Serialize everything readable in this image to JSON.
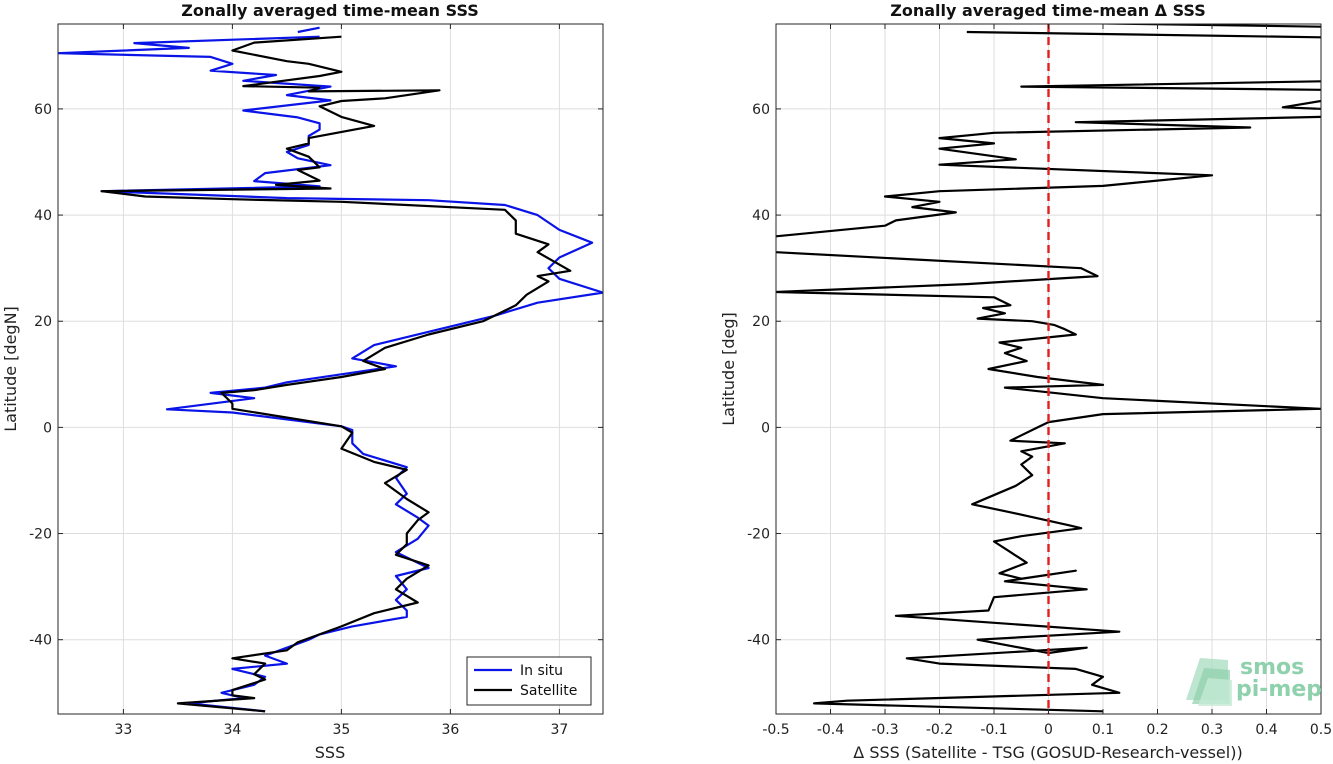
{
  "chart_data": [
    {
      "type": "line",
      "title": "Zonally averaged time-mean SSS",
      "xlabel": "SSS",
      "ylabel": "Latitude [degN]",
      "xlim": [
        32.4,
        37.4
      ],
      "ylim": [
        -54,
        76
      ],
      "xticks": [
        33,
        34,
        35,
        36,
        37
      ],
      "yticks": [
        -40,
        -20,
        0,
        20,
        40,
        60
      ],
      "grid": true,
      "legend_position": "bottom-right",
      "series": [
        {
          "name": "In situ",
          "color": "#0a14e6",
          "points": [
            [
              34.6,
              74.5
            ],
            [
              34.8,
              75.3
            ],
            [
              null,
              null
            ],
            [
              34.8,
              73.6
            ],
            [
              33.1,
              72.4
            ],
            [
              33.6,
              71.5
            ],
            [
              32.4,
              70.5
            ],
            [
              33.8,
              69.8
            ],
            [
              34.0,
              68.5
            ],
            [
              33.8,
              67.2
            ],
            [
              34.4,
              66.4
            ],
            [
              34.1,
              65.3
            ],
            [
              34.9,
              64.2
            ],
            [
              34.5,
              62.6
            ],
            [
              34.9,
              61.6
            ],
            [
              34.1,
              59.7
            ],
            [
              34.6,
              58.4
            ],
            [
              34.8,
              57.3
            ],
            [
              34.8,
              56.1
            ],
            [
              34.7,
              54.9
            ],
            [
              34.7,
              53.2
            ],
            [
              34.5,
              51.9
            ],
            [
              34.6,
              50.7
            ],
            [
              34.9,
              49.4
            ],
            [
              34.3,
              47.9
            ],
            [
              34.2,
              46.4
            ],
            [
              34.8,
              45.4
            ],
            [
              32.8,
              44.5
            ],
            [
              34.5,
              43.2
            ],
            [
              35.8,
              42.8
            ],
            [
              36.5,
              41.9
            ],
            [
              36.8,
              40.0
            ],
            [
              37.0,
              37.2
            ],
            [
              37.3,
              34.8
            ],
            [
              37.0,
              32.0
            ],
            [
              36.9,
              30.0
            ],
            [
              37.0,
              28.0
            ],
            [
              37.4,
              25.4
            ],
            [
              36.8,
              23.5
            ],
            [
              36.4,
              21.0
            ],
            [
              35.8,
              18.0
            ],
            [
              35.3,
              15.5
            ],
            [
              35.1,
              13.0
            ],
            [
              35.5,
              11.5
            ],
            [
              35.0,
              10.0
            ],
            [
              34.5,
              8.5
            ],
            [
              34.3,
              7.5
            ],
            [
              33.8,
              6.5
            ],
            [
              34.2,
              5.5
            ],
            [
              33.4,
              3.4
            ],
            [
              34.0,
              2.8
            ],
            [
              35.0,
              0.2
            ],
            [
              35.1,
              -0.5
            ],
            [
              35.1,
              -3.0
            ],
            [
              35.2,
              -5.0
            ],
            [
              35.6,
              -7.5
            ],
            [
              35.5,
              -9.5
            ],
            [
              35.6,
              -12.5
            ],
            [
              35.5,
              -14.5
            ],
            [
              35.7,
              -17.0
            ],
            [
              35.8,
              -18.5
            ],
            [
              35.7,
              -21.0
            ],
            [
              35.5,
              -23.5
            ],
            [
              35.7,
              -25.5
            ],
            [
              35.8,
              -26.5
            ],
            [
              35.5,
              -28.0
            ],
            [
              35.6,
              -30.5
            ],
            [
              35.5,
              -32.5
            ],
            [
              35.6,
              -34.5
            ],
            [
              35.6,
              -35.7
            ],
            [
              35.1,
              -37.5
            ],
            [
              34.8,
              -39.0
            ],
            [
              34.7,
              -40.0
            ],
            [
              34.5,
              -41.5
            ],
            [
              34.3,
              -43.0
            ],
            [
              34.5,
              -44.5
            ],
            [
              34.0,
              -45.5
            ],
            [
              34.3,
              -47.0
            ],
            [
              34.2,
              -48.5
            ],
            [
              33.9,
              -50.0
            ],
            [
              34.1,
              -51.0
            ],
            [
              33.6,
              -52.0
            ],
            [
              34.3,
              -53.5
            ]
          ]
        },
        {
          "name": "Satellite",
          "color": "#000000",
          "points": [
            [
              35.0,
              73.6
            ],
            [
              34.2,
              72.5
            ],
            [
              34.0,
              71.0
            ],
            [
              34.5,
              69.0
            ],
            [
              34.7,
              68.5
            ],
            [
              35.0,
              67.0
            ],
            [
              34.8,
              66.2
            ],
            [
              34.1,
              64.3
            ],
            [
              34.8,
              64.0
            ],
            [
              34.7,
              63.3
            ],
            [
              35.9,
              63.5
            ],
            [
              35.4,
              62.0
            ],
            [
              35.0,
              61.5
            ],
            [
              34.8,
              60.5
            ],
            [
              35.0,
              58.5
            ],
            [
              35.3,
              56.8
            ],
            [
              34.7,
              54.5
            ],
            [
              34.7,
              53.5
            ],
            [
              34.5,
              52.5
            ],
            [
              34.7,
              51.0
            ],
            [
              34.8,
              49.0
            ],
            [
              34.6,
              48.5
            ],
            [
              34.8,
              46.5
            ],
            [
              34.4,
              45.7
            ],
            [
              34.9,
              45.0
            ],
            [
              32.8,
              44.5
            ],
            [
              33.2,
              43.5
            ],
            [
              34.0,
              43.0
            ],
            [
              35.0,
              42.5
            ],
            [
              36.5,
              41.0
            ],
            [
              36.6,
              39.0
            ],
            [
              36.6,
              36.5
            ],
            [
              36.9,
              34.5
            ],
            [
              36.8,
              33.0
            ],
            [
              37.1,
              29.5
            ],
            [
              36.8,
              28.5
            ],
            [
              36.9,
              27.5
            ],
            [
              36.7,
              25.0
            ],
            [
              36.6,
              23.0
            ],
            [
              36.3,
              20.0
            ],
            [
              35.8,
              17.5
            ],
            [
              35.4,
              15.0
            ],
            [
              35.2,
              12.5
            ],
            [
              35.4,
              11.0
            ],
            [
              35.0,
              9.5
            ],
            [
              34.5,
              8.0
            ],
            [
              34.2,
              7.0
            ],
            [
              33.9,
              6.5
            ],
            [
              34.0,
              4.5
            ],
            [
              34.0,
              3.5
            ],
            [
              35.0,
              0.2
            ],
            [
              35.1,
              -1.0
            ],
            [
              35.0,
              -4.0
            ],
            [
              35.3,
              -6.5
            ],
            [
              35.6,
              -8.0
            ],
            [
              35.4,
              -10.5
            ],
            [
              35.6,
              -13.5
            ],
            [
              35.8,
              -16.0
            ],
            [
              35.7,
              -17.5
            ],
            [
              35.6,
              -20.0
            ],
            [
              35.6,
              -22.0
            ],
            [
              35.5,
              -24.0
            ],
            [
              35.8,
              -26.0
            ],
            [
              35.6,
              -28.5
            ],
            [
              35.5,
              -30.5
            ],
            [
              35.7,
              -33.0
            ],
            [
              35.3,
              -35.0
            ],
            [
              35.0,
              -37.5
            ],
            [
              34.6,
              -40.5
            ],
            [
              34.5,
              -42.0
            ],
            [
              34.0,
              -43.5
            ],
            [
              34.3,
              -44.5
            ],
            [
              34.2,
              -46.5
            ],
            [
              34.3,
              -47.5
            ],
            [
              34.0,
              -49.5
            ],
            [
              34.0,
              -50.5
            ],
            [
              34.2,
              -51.0
            ],
            [
              33.5,
              -52.0
            ],
            [
              34.3,
              -53.5
            ]
          ]
        }
      ]
    },
    {
      "type": "line",
      "title": "Zonally averaged time-mean Δ SSS",
      "xlabel": "Δ SSS (Satellite - TSG (GOSUD-Research-vessel))",
      "ylabel": "Latitude [deg]",
      "xlim": [
        -0.5,
        0.5
      ],
      "ylim": [
        -54,
        76
      ],
      "xticks": [
        -0.5,
        -0.4,
        -0.3,
        -0.2,
        -0.1,
        0,
        0.1,
        0.2,
        0.3,
        0.4,
        0.5
      ],
      "yticks": [
        -40,
        -20,
        0,
        20,
        40,
        60
      ],
      "grid": true,
      "reference_line": {
        "x": 0,
        "color": "#e02020",
        "style": "dashed"
      },
      "series": [
        {
          "name": "",
          "color": "#000000",
          "points": [
            [
              0.5,
              75.5
            ],
            [
              -0.17,
              76.5
            ],
            [
              null,
              null
            ],
            [
              -0.15,
              74.5
            ],
            [
              0.5,
              73.5
            ],
            [
              null,
              null
            ],
            [
              0.5,
              65.2
            ],
            [
              -0.05,
              64.2
            ],
            [
              0.5,
              63.6
            ],
            [
              null,
              null
            ],
            [
              0.5,
              61.5
            ],
            [
              0.43,
              60.3
            ],
            [
              0.5,
              60.0
            ],
            [
              null,
              null
            ],
            [
              0.5,
              58.5
            ],
            [
              0.05,
              57.5
            ],
            [
              0.37,
              56.5
            ],
            [
              -0.1,
              55.5
            ],
            [
              -0.2,
              54.5
            ],
            [
              -0.1,
              53.5
            ],
            [
              -0.2,
              52.5
            ],
            [
              -0.06,
              50.5
            ],
            [
              -0.2,
              49.5
            ],
            [
              0.3,
              47.5
            ],
            [
              0.1,
              45.5
            ],
            [
              -0.2,
              44.5
            ],
            [
              -0.3,
              43.5
            ],
            [
              -0.2,
              42.5
            ],
            [
              -0.25,
              41.5
            ],
            [
              -0.17,
              40.5
            ],
            [
              -0.28,
              39.0
            ],
            [
              -0.3,
              38.0
            ],
            [
              -0.5,
              36.0
            ],
            [
              null,
              null
            ],
            [
              -0.5,
              33.0
            ],
            [
              0.06,
              30.0
            ],
            [
              0.09,
              28.5
            ],
            [
              -0.15,
              27.0
            ],
            [
              -0.5,
              25.5
            ],
            [
              -0.1,
              24.5
            ],
            [
              -0.07,
              23.0
            ],
            [
              -0.12,
              22.5
            ],
            [
              -0.08,
              21.5
            ],
            [
              -0.13,
              20.5
            ],
            [
              -0.03,
              20.0
            ],
            [
              0.0,
              19.5
            ],
            [
              0.01,
              19.3
            ],
            [
              0.03,
              18.5
            ],
            [
              0.05,
              17.5
            ],
            [
              -0.09,
              16.0
            ],
            [
              -0.05,
              15.0
            ],
            [
              -0.08,
              14.0
            ],
            [
              -0.04,
              12.5
            ],
            [
              -0.11,
              11.0
            ],
            [
              -0.02,
              9.5
            ],
            [
              0.1,
              8.0
            ],
            [
              -0.08,
              7.5
            ],
            [
              0.1,
              5.5
            ],
            [
              0.4,
              4.0
            ],
            [
              0.5,
              3.5
            ],
            [
              0.1,
              2.5
            ],
            [
              0.0,
              1.0
            ],
            [
              -0.02,
              0.0
            ],
            [
              -0.07,
              -2.5
            ],
            [
              0.03,
              -3.0
            ],
            [
              -0.05,
              -4.5
            ],
            [
              -0.03,
              -5.5
            ],
            [
              -0.05,
              -7.0
            ],
            [
              -0.03,
              -9.0
            ],
            [
              -0.06,
              -11.0
            ],
            [
              -0.14,
              -14.5
            ],
            [
              -0.07,
              -16.0
            ],
            [
              0.04,
              -18.5
            ],
            [
              0.06,
              -19.0
            ],
            [
              -0.05,
              -20.5
            ],
            [
              -0.1,
              -21.5
            ],
            [
              -0.07,
              -23.5
            ],
            [
              -0.04,
              -25.5
            ],
            [
              -0.09,
              -27.5
            ],
            [
              -0.05,
              -28.5
            ],
            [
              0.05,
              -27.0
            ],
            [
              -0.08,
              -29.0
            ],
            [
              0.07,
              -30.5
            ],
            [
              -0.1,
              -32.0
            ],
            [
              -0.11,
              -34.5
            ],
            [
              -0.28,
              -35.5
            ],
            [
              0.13,
              -38.5
            ],
            [
              -0.13,
              -40.0
            ],
            [
              0.0,
              -42.5
            ],
            [
              0.07,
              -41.5
            ],
            [
              -0.26,
              -43.5
            ],
            [
              -0.2,
              -44.5
            ],
            [
              0.05,
              -45.5
            ],
            [
              0.1,
              -47.0
            ],
            [
              0.08,
              -48.5
            ],
            [
              0.13,
              -50.0
            ],
            [
              -0.37,
              -51.5
            ],
            [
              -0.43,
              -52.0
            ],
            [
              0.1,
              -53.5
            ]
          ]
        }
      ]
    }
  ],
  "legend": {
    "entries": [
      "In situ",
      "Satellite"
    ]
  },
  "logo": {
    "line1": "smos",
    "line2": "pi-mep"
  }
}
